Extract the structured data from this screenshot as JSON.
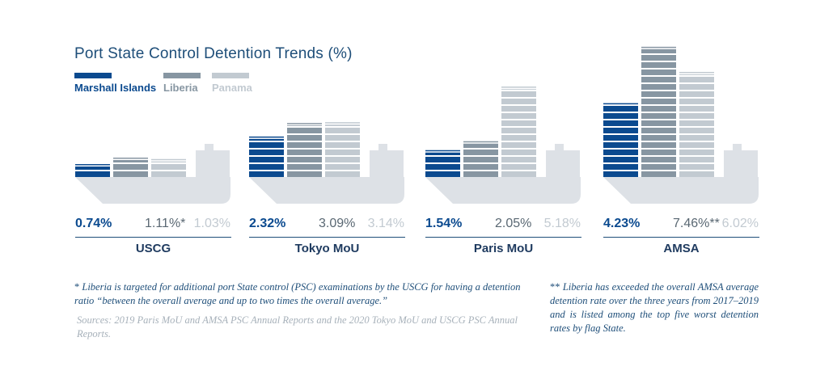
{
  "title": "Port State Control Detention Trends (%)",
  "legend": [
    {
      "label": "Marshall Islands",
      "color": "#0b4a8f"
    },
    {
      "label": "Liberia",
      "color": "#8796a2"
    },
    {
      "label": "Panama",
      "color": "#c2cad1"
    }
  ],
  "colors": {
    "ship": "#dde1e6",
    "rule": "#1e4e79",
    "accent": "#0b4a8f"
  },
  "chart_data": {
    "type": "bar",
    "title": "Port State Control Detention Trends (%)",
    "categories": [
      "USCG",
      "Tokyo MoU",
      "Paris MoU",
      "AMSA"
    ],
    "series": [
      {
        "name": "Marshall Islands",
        "values": [
          0.74,
          2.32,
          1.54,
          4.23
        ]
      },
      {
        "name": "Liberia",
        "values": [
          1.11,
          3.09,
          2.05,
          7.46
        ]
      },
      {
        "name": "Panama",
        "values": [
          1.03,
          3.14,
          5.18,
          6.02
        ]
      }
    ],
    "value_labels": [
      [
        "0.74%",
        "1.11%*",
        "1.03%"
      ],
      [
        "2.32%",
        "3.09%",
        "3.14%"
      ],
      [
        "1.54%",
        "2.05%",
        "5.18%"
      ],
      [
        "4.23%",
        "7.46%**",
        "6.02%"
      ]
    ],
    "legend_position": "top-left",
    "grid": false
  },
  "footnotes": {
    "single": {
      "mark": "*",
      "text": "Liberia is targeted for additional port State control (PSC) examinations by the USCG for having a detention ratio “between the overall average and up to two times the overall average.”"
    },
    "double": {
      "mark": "**",
      "text": "Liberia has exceeded the overall AMSA average detention rate over the three years from 2017–2019 and is listed among the top five worst detention rates by flag State."
    },
    "sources": "Sources: 2019 Paris MoU and AMSA PSC Annual Reports and the 2020 Tokyo MoU and USCG PSC Annual Reports."
  }
}
